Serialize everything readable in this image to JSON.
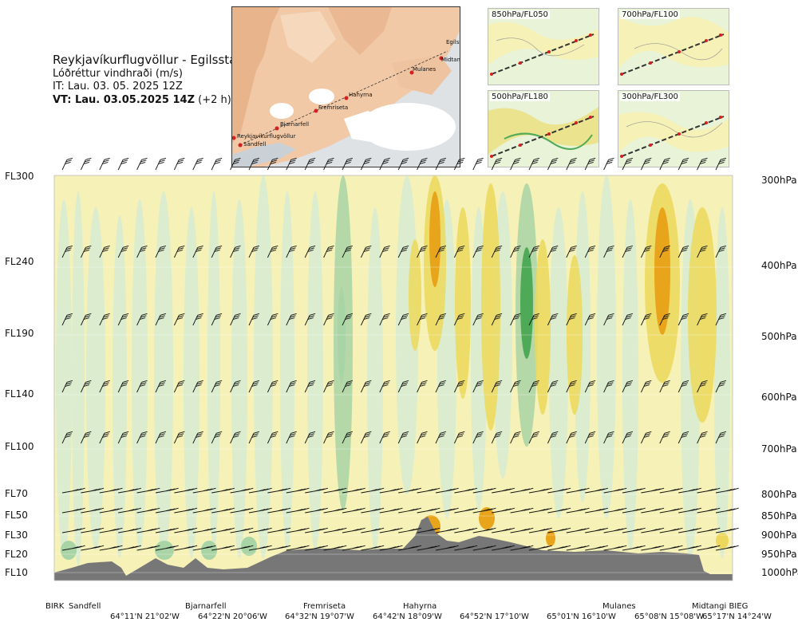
{
  "title": {
    "route": "Reykjavíkurflugvöllur - Egilsstadir",
    "subtitle": "Lóðréttur vindhraði (m/s)",
    "issue_time": "IT: Lau. 03. 05. 2025 12Z",
    "valid_time_bold": "VT: Lau. 03.05.2025 14Z",
    "valid_time_offset": "(+2 h)"
  },
  "flight_levels": [
    "FL300",
    "FL240",
    "FL190",
    "FL140",
    "FL100",
    "FL70",
    "FL50",
    "FL30",
    "FL20",
    "FL10"
  ],
  "pressure_levels": [
    "300hPa",
    "400hPa",
    "500hPa",
    "600hPa",
    "700hPa",
    "800hPa",
    "850hPa",
    "900hPa",
    "950hPa",
    "1000hPa"
  ],
  "station_labels": [
    "BIRK",
    "Sandfell",
    "Bjarnarfell",
    "Fremriseta",
    "Hahyrna",
    "Mulanes",
    "Midtangi BIEG"
  ],
  "coordinate_labels": [
    "64°11'N 21°02'W",
    "64°22'N 20°06'W",
    "64°32'N 19°07'W",
    "64°42'N 18°09'W",
    "64°52'N 17°10'W",
    "65°01'N 16°10'W",
    "65°08'N 15°08'W",
    "65°17'N 14°24'W"
  ],
  "map_inset": {
    "cities": [
      "Reykjavíkurflugvöllur",
      "Sandfell",
      "Bjarnarfell",
      "Fremriseta",
      "Hahyrna",
      "Mulanes",
      "Egilss",
      "Midtang"
    ]
  },
  "panels": [
    {
      "label": "850hPa/FL050"
    },
    {
      "label": "700hPa/FL100"
    },
    {
      "label": "500hPa/FL180"
    },
    {
      "label": "300hPa/FL300"
    }
  ],
  "colors": {
    "updraft_light": "#f6f1b6",
    "updraft_mid": "#ecd85c",
    "updraft_strong": "#e8a51c",
    "downdraft_light": "#d6ecd2",
    "downdraft_mid": "#a8d4a6",
    "downdraft_strong": "#4faa58",
    "terrain": "#777777",
    "route_marker": "#d62020"
  }
}
